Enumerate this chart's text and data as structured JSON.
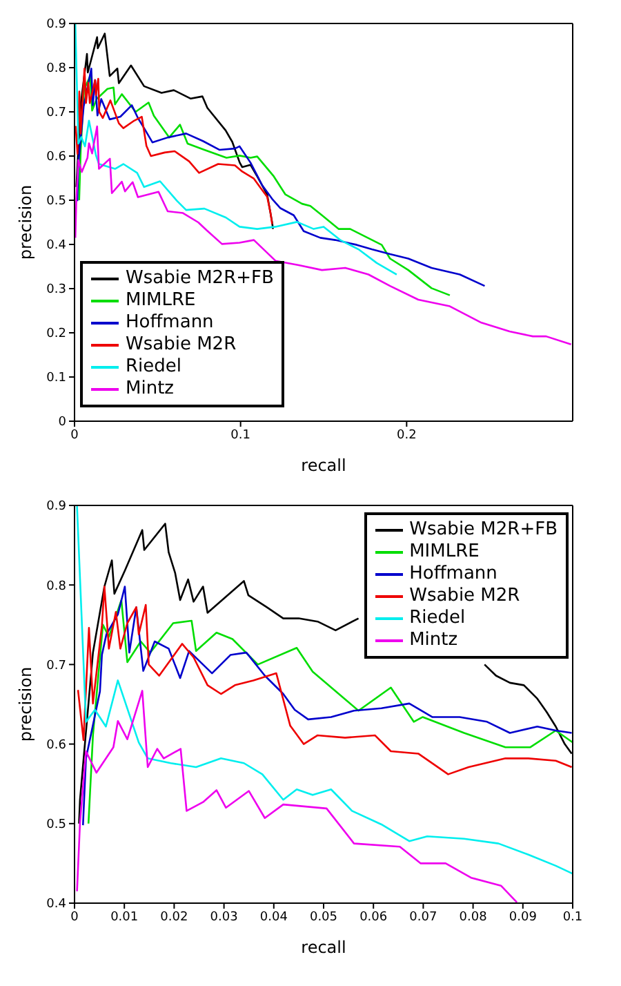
{
  "chart_data": [
    {
      "type": "line",
      "xlabel": "recall",
      "ylabel": "precision",
      "xlim": [
        0,
        0.3
      ],
      "xticks": [
        0,
        0.1,
        0.2
      ],
      "ylim": [
        0,
        0.9
      ],
      "yticks": [
        0,
        0.1,
        0.2,
        0.3,
        0.4,
        0.5,
        0.6,
        0.7,
        0.8,
        0.9
      ],
      "legend": "bottom left",
      "marker": "none",
      "series": [
        {
          "name": "Wsabie M2R+FB",
          "color": "#000000",
          "x": [
            0.0011,
            0.0037,
            0.0075,
            0.008,
            0.0136,
            0.014,
            0.0182,
            0.0212,
            0.0258,
            0.0267,
            0.034,
            0.0419,
            0.0524,
            0.0598,
            0.07,
            0.077,
            0.08,
            0.091,
            0.095,
            0.0995,
            0.101,
            0.106,
            0.11,
            0.116,
            0.119,
            0.1195
          ],
          "values": [
            0.53,
            0.715,
            0.831,
            0.789,
            0.869,
            0.844,
            0.877,
            0.781,
            0.798,
            0.765,
            0.805,
            0.758,
            0.743,
            0.749,
            0.73,
            0.735,
            0.709,
            0.658,
            0.632,
            0.585,
            0.575,
            0.58,
            0.554,
            0.513,
            0.45,
            0.435
          ]
        },
        {
          "name": "MIMLRE",
          "color": "#00dd00",
          "x": [
            0.0028,
            0.0037,
            0.0057,
            0.0094,
            0.0106,
            0.0133,
            0.0198,
            0.0235,
            0.0244,
            0.0285,
            0.0368,
            0.0446,
            0.0478,
            0.057,
            0.0635,
            0.0681,
            0.0782,
            0.0915,
            0.0994,
            0.106,
            0.11,
            0.12,
            0.127,
            0.137,
            0.142,
            0.149,
            0.159,
            0.166,
            0.185,
            0.19,
            0.201,
            0.215,
            0.226
          ],
          "values": [
            0.5,
            0.611,
            0.75,
            0.781,
            0.703,
            0.729,
            0.752,
            0.755,
            0.717,
            0.74,
            0.7,
            0.721,
            0.691,
            0.642,
            0.671,
            0.628,
            0.614,
            0.596,
            0.601,
            0.596,
            0.599,
            0.554,
            0.513,
            0.492,
            0.487,
            0.466,
            0.435,
            0.435,
            0.399,
            0.368,
            0.342,
            0.301,
            0.285
          ]
        },
        {
          "name": "Hoffmann",
          "color": "#0000cc",
          "x": [
            0.0017,
            0.0023,
            0.0055,
            0.0101,
            0.011,
            0.0124,
            0.0138,
            0.0161,
            0.0212,
            0.0276,
            0.0345,
            0.0382,
            0.0419,
            0.0469,
            0.0561,
            0.0672,
            0.0773,
            0.0874,
            0.0966,
            0.0994,
            0.106,
            0.113,
            0.119,
            0.124,
            0.132,
            0.138,
            0.148,
            0.157,
            0.17,
            0.179,
            0.19,
            0.201,
            0.215,
            0.232,
            0.247
          ],
          "values": [
            0.498,
            0.582,
            0.712,
            0.798,
            0.715,
            0.772,
            0.692,
            0.729,
            0.683,
            0.689,
            0.715,
            0.686,
            0.663,
            0.631,
            0.642,
            0.651,
            0.634,
            0.614,
            0.617,
            0.622,
            0.585,
            0.534,
            0.503,
            0.482,
            0.466,
            0.43,
            0.415,
            0.41,
            0.399,
            0.389,
            0.378,
            0.368,
            0.347,
            0.332,
            0.306
          ]
        },
        {
          "name": "Wsabie M2R",
          "color": "#ee0000",
          "x": [
            0.0007,
            0.0018,
            0.0029,
            0.0037,
            0.006,
            0.0069,
            0.0083,
            0.0092,
            0.0124,
            0.0129,
            0.0143,
            0.0149,
            0.017,
            0.0216,
            0.0267,
            0.0294,
            0.0359,
            0.0405,
            0.0433,
            0.046,
            0.0543,
            0.0603,
            0.069,
            0.075,
            0.0865,
            0.0966,
            0.101,
            0.108,
            0.112,
            0.116,
            0.118,
            0.119
          ],
          "values": [
            0.668,
            0.605,
            0.746,
            0.651,
            0.798,
            0.72,
            0.766,
            0.72,
            0.772,
            0.738,
            0.775,
            0.7,
            0.686,
            0.726,
            0.674,
            0.663,
            0.68,
            0.689,
            0.623,
            0.6,
            0.608,
            0.611,
            0.588,
            0.562,
            0.582,
            0.579,
            0.565,
            0.549,
            0.528,
            0.508,
            0.472,
            0.446
          ]
        },
        {
          "name": "Riedel",
          "color": "#00eeee",
          "x": [
            0.0005,
            0.0023,
            0.0041,
            0.0063,
            0.0087,
            0.0129,
            0.0147,
            0.0244,
            0.0294,
            0.0377,
            0.0419,
            0.0515,
            0.0616,
            0.0672,
            0.0782,
            0.0911,
            0.0994,
            0.11,
            0.121,
            0.134,
            0.144,
            0.15,
            0.16,
            0.171,
            0.182,
            0.194
          ],
          "values": [
            0.899,
            0.628,
            0.643,
            0.622,
            0.68,
            0.602,
            0.582,
            0.571,
            0.582,
            0.562,
            0.53,
            0.543,
            0.499,
            0.478,
            0.481,
            0.461,
            0.44,
            0.435,
            0.44,
            0.451,
            0.435,
            0.44,
            0.41,
            0.389,
            0.358,
            0.332
          ]
        },
        {
          "name": "Mintz",
          "color": "#ee00ee",
          "x": [
            0.0005,
            0.0011,
            0.0023,
            0.0044,
            0.0078,
            0.0087,
            0.0106,
            0.0136,
            0.0147,
            0.0213,
            0.0225,
            0.0285,
            0.0304,
            0.035,
            0.0382,
            0.0506,
            0.0561,
            0.0653,
            0.0745,
            0.0796,
            0.0888,
            0.0994,
            0.108,
            0.121,
            0.135,
            0.149,
            0.163,
            0.177,
            0.19,
            0.207,
            0.226,
            0.245,
            0.262,
            0.276,
            0.284,
            0.299
          ],
          "values": [
            0.415,
            0.501,
            0.591,
            0.564,
            0.596,
            0.629,
            0.606,
            0.667,
            0.571,
            0.594,
            0.516,
            0.542,
            0.52,
            0.541,
            0.507,
            0.519,
            0.475,
            0.471,
            0.45,
            0.432,
            0.401,
            0.404,
            0.41,
            0.363,
            0.353,
            0.342,
            0.347,
            0.332,
            0.306,
            0.275,
            0.26,
            0.223,
            0.203,
            0.192,
            0.192,
            0.174
          ]
        }
      ]
    },
    {
      "type": "line",
      "xlabel": "recall",
      "ylabel": "precision",
      "xlim": [
        0,
        0.1
      ],
      "xticks": [
        0,
        0.01,
        0.02,
        0.03,
        0.04,
        0.05,
        0.06,
        0.07,
        0.08,
        0.09,
        0.1
      ],
      "ylim": [
        0.4,
        0.9
      ],
      "yticks": [
        0.4,
        0.5,
        0.6,
        0.7,
        0.8,
        0.9
      ],
      "legend": "top right",
      "marker": "none",
      "series": [
        {
          "name": "Wsabie M2R+FB",
          "color": "#000000",
          "x": [
            0.0009,
            0.0011,
            0.0037,
            0.006,
            0.0075,
            0.008,
            0.0101,
            0.0136,
            0.014,
            0.0182,
            0.0189,
            0.0202,
            0.0212,
            0.0228,
            0.0239,
            0.0258,
            0.0267,
            0.034,
            0.0349,
            0.0386,
            0.0419,
            0.045,
            0.0488,
            0.0524,
            0.057,
            0.0598,
            0.07,
            0.0823,
            0.0846,
            0.0874,
            0.0902,
            0.0929,
            0.0948,
            0.0966,
            0.0984,
            0.0998
          ],
          "values": [
            0.5,
            0.53,
            0.715,
            0.798,
            0.831,
            0.789,
            0.818,
            0.869,
            0.844,
            0.877,
            0.841,
            0.815,
            0.781,
            0.807,
            0.779,
            0.798,
            0.765,
            0.805,
            0.787,
            0.772,
            0.758,
            0.758,
            0.754,
            0.743,
            0.758,
            null,
            null,
            0.7,
            0.686,
            0.677,
            0.674,
            0.657,
            0.64,
            0.622,
            0.6,
            0.588
          ]
        },
        {
          "name": "MIMLRE",
          "color": "#00dd00",
          "x": [
            0.0028,
            0.0037,
            0.0057,
            0.0069,
            0.0094,
            0.0106,
            0.0133,
            0.0152,
            0.0198,
            0.0235,
            0.0244,
            0.0285,
            0.0317,
            0.0368,
            0.0446,
            0.0478,
            0.057,
            0.0635,
            0.0681,
            0.0699,
            0.0782,
            0.0865,
            0.0915,
            0.0966,
            0.1
          ],
          "values": [
            0.5,
            0.611,
            0.75,
            0.735,
            0.781,
            0.703,
            0.729,
            0.715,
            0.752,
            0.755,
            0.717,
            0.74,
            0.732,
            0.7,
            0.721,
            0.691,
            0.642,
            0.671,
            0.628,
            0.634,
            0.614,
            0.596,
            0.596,
            0.617,
            0.602
          ]
        },
        {
          "name": "Hoffmann",
          "color": "#0000cc",
          "x": [
            0.0017,
            0.0023,
            0.0051,
            0.0055,
            0.0064,
            0.0087,
            0.0101,
            0.011,
            0.0124,
            0.0138,
            0.0161,
            0.0189,
            0.0212,
            0.023,
            0.0276,
            0.0313,
            0.0345,
            0.0382,
            0.0419,
            0.0442,
            0.0469,
            0.0515,
            0.0561,
            0.0616,
            0.0672,
            0.0718,
            0.0773,
            0.0828,
            0.0874,
            0.0929,
            0.0966,
            0.0998
          ],
          "values": [
            0.498,
            0.582,
            0.666,
            0.712,
            0.738,
            0.763,
            0.798,
            0.715,
            0.772,
            0.692,
            0.729,
            0.72,
            0.683,
            0.717,
            0.689,
            0.712,
            0.715,
            0.686,
            0.663,
            0.643,
            0.631,
            0.634,
            0.642,
            0.645,
            0.651,
            0.634,
            0.634,
            0.628,
            0.614,
            0.622,
            0.617,
            0.614
          ]
        },
        {
          "name": "Wsabie M2R",
          "color": "#ee0000",
          "x": [
            0.0007,
            0.0018,
            0.0029,
            0.0037,
            0.0055,
            0.006,
            0.0069,
            0.0083,
            0.0092,
            0.0106,
            0.0124,
            0.0129,
            0.0143,
            0.0149,
            0.017,
            0.0193,
            0.0216,
            0.0239,
            0.0267,
            0.0294,
            0.0322,
            0.0359,
            0.0405,
            0.0433,
            0.046,
            0.0488,
            0.0543,
            0.0603,
            0.0635,
            0.069,
            0.075,
            0.0791,
            0.0865,
            0.0911,
            0.0966,
            0.0998
          ],
          "values": [
            0.668,
            0.605,
            0.746,
            0.651,
            0.749,
            0.798,
            0.72,
            0.766,
            0.72,
            0.752,
            0.772,
            0.738,
            0.775,
            0.7,
            0.686,
            0.706,
            0.726,
            0.709,
            0.674,
            0.663,
            0.674,
            0.68,
            0.689,
            0.623,
            0.6,
            0.611,
            0.608,
            0.611,
            0.591,
            0.588,
            0.562,
            0.571,
            0.582,
            0.582,
            0.579,
            0.571
          ]
        },
        {
          "name": "Riedel",
          "color": "#00eeee",
          "x": [
            0.0005,
            0.0023,
            0.0041,
            0.0063,
            0.0087,
            0.0129,
            0.0147,
            0.0193,
            0.0244,
            0.0294,
            0.034,
            0.0377,
            0.0419,
            0.0446,
            0.0478,
            0.0515,
            0.0557,
            0.0616,
            0.0672,
            0.0708,
            0.0782,
            0.0851,
            0.0911,
            0.0966,
            0.1
          ],
          "values": [
            0.899,
            0.628,
            0.643,
            0.622,
            0.68,
            0.602,
            0.582,
            0.576,
            0.571,
            0.582,
            0.576,
            0.562,
            0.53,
            0.543,
            0.536,
            0.543,
            0.516,
            0.499,
            0.478,
            0.484,
            0.481,
            0.475,
            0.461,
            0.447,
            0.437
          ]
        },
        {
          "name": "Mintz",
          "color": "#ee00ee",
          "x": [
            0.0005,
            0.0011,
            0.0023,
            0.0044,
            0.0078,
            0.0087,
            0.0106,
            0.0136,
            0.0147,
            0.0166,
            0.0179,
            0.0213,
            0.0225,
            0.0258,
            0.0285,
            0.0304,
            0.035,
            0.0382,
            0.0419,
            0.0506,
            0.0561,
            0.0653,
            0.0695,
            0.0745,
            0.0796,
            0.0856,
            0.0888
          ],
          "values": [
            0.415,
            0.501,
            0.591,
            0.564,
            0.596,
            0.629,
            0.606,
            0.667,
            0.571,
            0.594,
            0.582,
            0.594,
            0.516,
            0.527,
            0.542,
            0.52,
            0.541,
            0.507,
            0.524,
            0.519,
            0.475,
            0.471,
            0.45,
            0.45,
            0.432,
            0.422,
            0.401
          ]
        }
      ]
    }
  ]
}
